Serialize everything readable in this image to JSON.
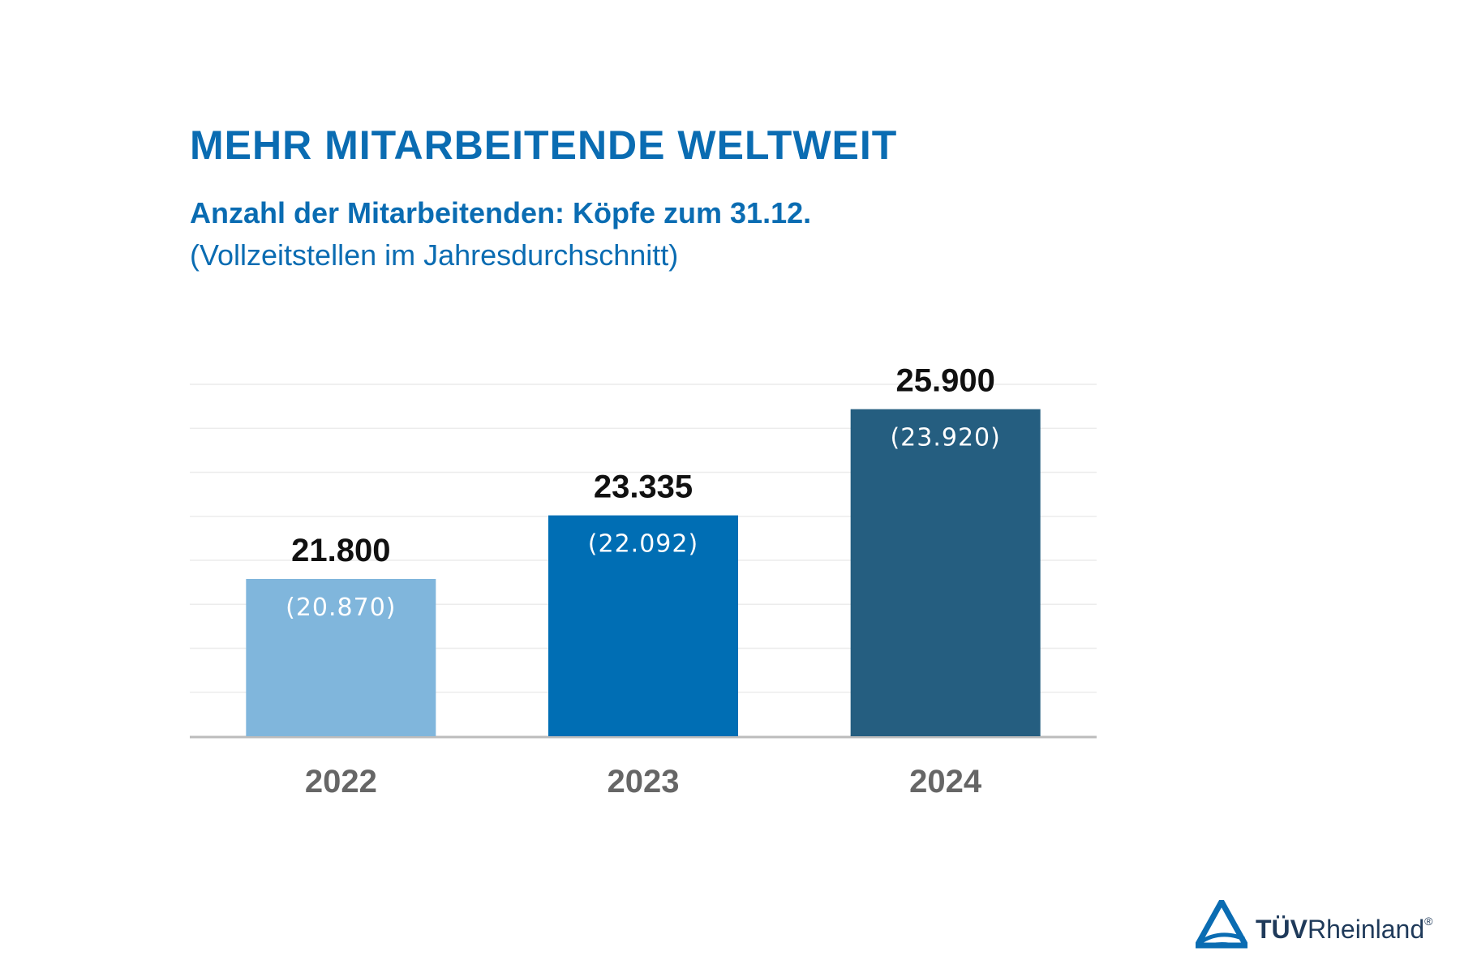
{
  "header": {
    "title": "MEHR MITARBEITENDE WELTWEIT",
    "subtitle": "Anzahl der Mitarbeitenden: Köpfe zum 31.12.",
    "subtitle_note": "(Vollzeitstellen im Jahresdurchschnitt)"
  },
  "chart_data": {
    "type": "bar",
    "title": "MEHR MITARBEITENDE WELTWEIT",
    "xlabel": "",
    "ylabel": "",
    "categories": [
      "2022",
      "2023",
      "2024"
    ],
    "series": [
      {
        "values": [
          21800,
          23335,
          25900
        ]
      },
      {
        "values": [
          20870,
          22092,
          23920
        ]
      }
    ],
    "value_labels": [
      "21.800",
      "23.335",
      "25.900"
    ],
    "inner_labels": [
      "(20.870)",
      "(22.092)",
      "(23.920)"
    ],
    "bar_colors": [
      "#80b6dc",
      "#006eb4",
      "#255e80"
    ],
    "ylim": [
      18000,
      26500
    ],
    "grid": true,
    "legend": "none"
  },
  "logo": {
    "brand_bold": "TÜV",
    "brand_regular": "Rheinland",
    "reg_mark": "®",
    "colors": {
      "mark": "#0a6cb2",
      "text": "#1f3a5a"
    }
  }
}
